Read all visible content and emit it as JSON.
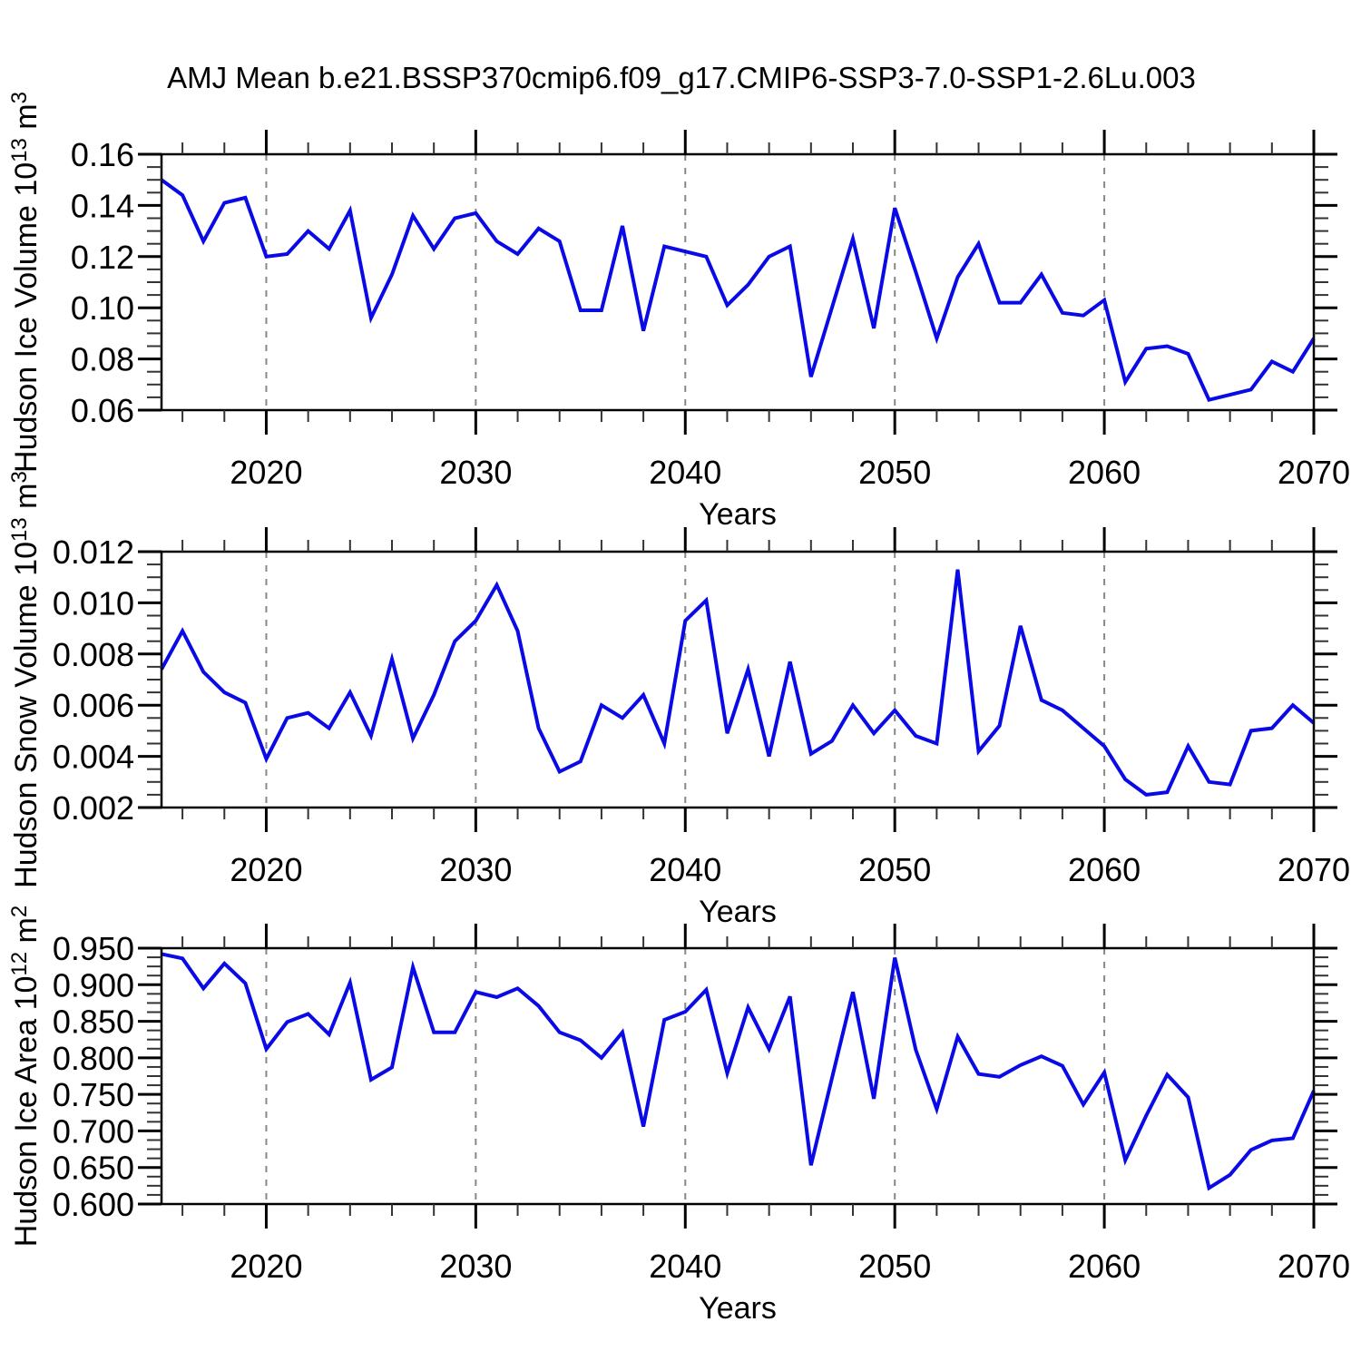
{
  "title": "AMJ Mean b.e21.BSSP370cmip6.f09_g17.CMIP6-SSP3-7.0-SSP1-2.6Lu.003",
  "colors": {
    "line": "#0a0ae6",
    "frame": "#000000",
    "major_tick": "#000000",
    "minor_tick": "#333333",
    "decade_gridline": "#888888",
    "text": "#000000",
    "background": "#ffffff"
  },
  "x_axis": {
    "label": "Years",
    "range": [
      2015,
      2070
    ],
    "major_ticks": [
      2020,
      2030,
      2040,
      2050,
      2060,
      2070
    ],
    "major_tick_labels": [
      "2020",
      "2030",
      "2040",
      "2050",
      "2060",
      "2070"
    ],
    "minor_step": 2,
    "decade_gridlines": [
      2020,
      2030,
      2040,
      2050,
      2060
    ]
  },
  "chart_data": [
    {
      "type": "line",
      "name": "hudson-ice-volume",
      "ylabel": {
        "text": "Hudson Ice Volume 10",
        "exp": "13",
        "unit": " m",
        "unit_exp": "3"
      },
      "xlabel": "Years",
      "y_range": [
        0.06,
        0.16
      ],
      "y_major_values": [
        0.16,
        0.14,
        0.12,
        0.1,
        0.08,
        0.06
      ],
      "y_major_labels": [
        "0.16",
        "0.14",
        "0.12",
        "0.10",
        "0.08",
        "0.06"
      ],
      "y_minor_step": 0.005,
      "grid": "vertical-dashed-decades",
      "legend": "none",
      "years": [
        2015,
        2016,
        2017,
        2018,
        2019,
        2020,
        2021,
        2022,
        2023,
        2024,
        2025,
        2026,
        2027,
        2028,
        2029,
        2030,
        2031,
        2032,
        2033,
        2034,
        2035,
        2036,
        2037,
        2038,
        2039,
        2040,
        2041,
        2042,
        2043,
        2044,
        2045,
        2046,
        2047,
        2048,
        2049,
        2050,
        2051,
        2052,
        2053,
        2054,
        2055,
        2056,
        2057,
        2058,
        2059,
        2060,
        2061,
        2062,
        2063,
        2064,
        2065,
        2066,
        2067,
        2068,
        2069,
        2070
      ],
      "values": [
        0.15,
        0.144,
        0.126,
        0.141,
        0.143,
        0.12,
        0.121,
        0.13,
        0.123,
        0.138,
        0.096,
        0.113,
        0.136,
        0.123,
        0.135,
        0.137,
        0.126,
        0.121,
        0.131,
        0.126,
        0.099,
        0.099,
        0.132,
        0.091,
        0.124,
        0.122,
        0.12,
        0.101,
        0.109,
        0.12,
        0.124,
        0.073,
        0.1,
        0.127,
        0.092,
        0.139,
        0.114,
        0.088,
        0.112,
        0.125,
        0.102,
        0.102,
        0.113,
        0.098,
        0.097,
        0.103,
        0.071,
        0.084,
        0.085,
        0.082,
        0.064,
        0.066,
        0.068,
        0.079,
        0.075,
        0.088
      ]
    },
    {
      "type": "line",
      "name": "hudson-snow-volume",
      "ylabel": {
        "text": "Hudson Snow Volume 10",
        "exp": "13",
        "unit": " m",
        "unit_exp": "3"
      },
      "xlabel": "Years",
      "y_range": [
        0.002,
        0.012
      ],
      "y_major_values": [
        0.012,
        0.01,
        0.008,
        0.006,
        0.004,
        0.002
      ],
      "y_major_labels": [
        "0.012",
        "0.010",
        "0.008",
        "0.006",
        "0.004",
        "0.002"
      ],
      "y_minor_step": 0.0005,
      "grid": "vertical-dashed-decades",
      "legend": "none",
      "years": [
        2015,
        2016,
        2017,
        2018,
        2019,
        2020,
        2021,
        2022,
        2023,
        2024,
        2025,
        2026,
        2027,
        2028,
        2029,
        2030,
        2031,
        2032,
        2033,
        2034,
        2035,
        2036,
        2037,
        2038,
        2039,
        2040,
        2041,
        2042,
        2043,
        2044,
        2045,
        2046,
        2047,
        2048,
        2049,
        2050,
        2051,
        2052,
        2053,
        2054,
        2055,
        2056,
        2057,
        2058,
        2059,
        2060,
        2061,
        2062,
        2063,
        2064,
        2065,
        2066,
        2067,
        2068,
        2069,
        2070
      ],
      "values": [
        0.0074,
        0.0089,
        0.0073,
        0.0065,
        0.0061,
        0.0039,
        0.0055,
        0.0057,
        0.0051,
        0.0065,
        0.0048,
        0.0078,
        0.0047,
        0.0064,
        0.0085,
        0.0093,
        0.0107,
        0.0089,
        0.0051,
        0.0034,
        0.0038,
        0.006,
        0.0055,
        0.0064,
        0.0045,
        0.0093,
        0.0101,
        0.0049,
        0.0074,
        0.004,
        0.0077,
        0.0041,
        0.0046,
        0.006,
        0.0049,
        0.0058,
        0.0048,
        0.0045,
        0.0113,
        0.0042,
        0.0052,
        0.0091,
        0.0062,
        0.0058,
        0.0051,
        0.0044,
        0.0031,
        0.0025,
        0.0026,
        0.0044,
        0.003,
        0.0029,
        0.005,
        0.0051,
        0.006,
        0.0053
      ]
    },
    {
      "type": "line",
      "name": "hudson-ice-area",
      "ylabel": {
        "text": "Hudson Ice Area 10",
        "exp": "12",
        "unit": " m",
        "unit_exp": "2"
      },
      "xlabel": "Years",
      "y_range": [
        0.6,
        0.95
      ],
      "y_major_values": [
        0.95,
        0.9,
        0.85,
        0.8,
        0.75,
        0.7,
        0.65,
        0.6
      ],
      "y_major_labels": [
        "0.950",
        "0.900",
        "0.850",
        "0.800",
        "0.750",
        "0.700",
        "0.650",
        "0.600"
      ],
      "y_minor_step": 0.0125,
      "grid": "vertical-dashed-decades",
      "legend": "none",
      "years": [
        2015,
        2016,
        2017,
        2018,
        2019,
        2020,
        2021,
        2022,
        2023,
        2024,
        2025,
        2026,
        2027,
        2028,
        2029,
        2030,
        2031,
        2032,
        2033,
        2034,
        2035,
        2036,
        2037,
        2038,
        2039,
        2040,
        2041,
        2042,
        2043,
        2044,
        2045,
        2046,
        2047,
        2048,
        2049,
        2050,
        2051,
        2052,
        2053,
        2054,
        2055,
        2056,
        2057,
        2058,
        2059,
        2060,
        2061,
        2062,
        2063,
        2064,
        2065,
        2066,
        2067,
        2068,
        2069,
        2070
      ],
      "values": [
        0.942,
        0.936,
        0.895,
        0.929,
        0.902,
        0.812,
        0.849,
        0.86,
        0.832,
        0.903,
        0.77,
        0.787,
        0.924,
        0.835,
        0.835,
        0.89,
        0.883,
        0.895,
        0.871,
        0.835,
        0.824,
        0.8,
        0.835,
        0.706,
        0.852,
        0.863,
        0.893,
        0.779,
        0.869,
        0.812,
        0.884,
        0.653,
        0.772,
        0.89,
        0.744,
        0.937,
        0.811,
        0.73,
        0.829,
        0.778,
        0.774,
        0.79,
        0.802,
        0.789,
        0.736,
        0.78,
        0.66,
        0.721,
        0.777,
        0.746,
        0.622,
        0.64,
        0.674,
        0.687,
        0.69,
        0.755
      ]
    }
  ]
}
